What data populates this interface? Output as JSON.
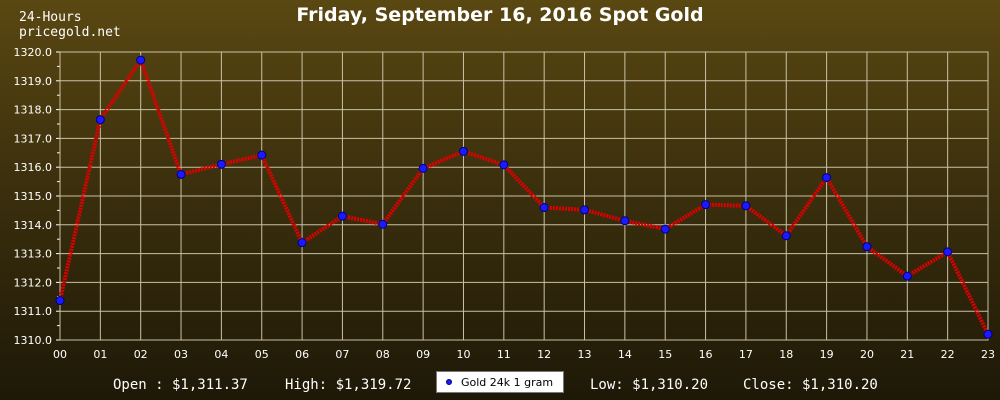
{
  "header": {
    "line1": "24-Hours",
    "line2": "pricegold.net"
  },
  "chart_data": {
    "type": "line",
    "title": "Friday, September 16, 2016 Spot Gold",
    "xlabel": "",
    "ylabel": "",
    "categories": [
      "00",
      "01",
      "02",
      "03",
      "04",
      "05",
      "06",
      "07",
      "08",
      "09",
      "10",
      "11",
      "12",
      "13",
      "14",
      "15",
      "16",
      "17",
      "18",
      "19",
      "20",
      "21",
      "22",
      "23"
    ],
    "series": [
      {
        "name": "Gold 24k 1 gram",
        "values": [
          1311.37,
          1317.65,
          1319.72,
          1315.75,
          1316.1,
          1316.42,
          1313.38,
          1314.3,
          1314.02,
          1315.96,
          1316.55,
          1316.08,
          1314.6,
          1314.52,
          1314.14,
          1313.85,
          1314.7,
          1314.66,
          1313.62,
          1315.64,
          1313.24,
          1312.22,
          1313.06,
          1310.2
        ]
      }
    ],
    "ylim": [
      1310.0,
      1320.0
    ],
    "yticks": [
      "1310.0",
      "1311.0",
      "1312.0",
      "1313.0",
      "1314.0",
      "1315.0",
      "1316.0",
      "1317.0",
      "1318.0",
      "1319.0",
      "1320.0"
    ],
    "grid": true,
    "legend_position": "bottom-center",
    "colors": {
      "line": "#dd0000",
      "marker": "#1a1aff",
      "grid": "#c9c2a4"
    }
  },
  "footer": {
    "open": "Open : $1,311.37",
    "high": "High: $1,319.72",
    "low": "Low: $1,310.20",
    "close": "Close: $1,310.20"
  }
}
